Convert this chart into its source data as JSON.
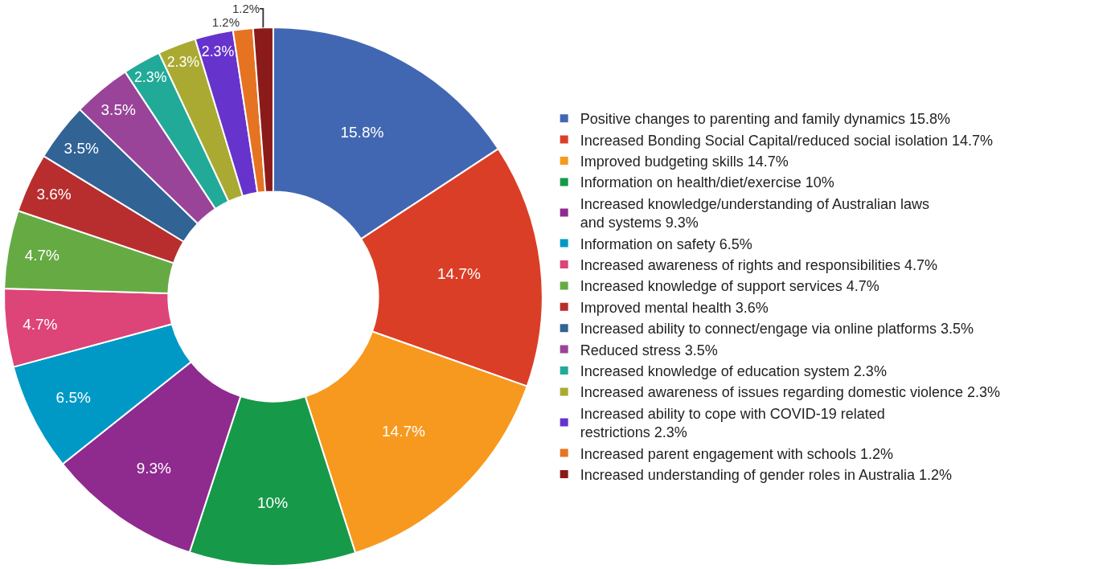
{
  "chart_data": {
    "type": "donut",
    "categories": [
      "Positive changes to parenting and family dynamics",
      "Increased Bonding Social Capital/reduced social isolation",
      "Improved budgeting skills",
      "Information on health/diet/exercise",
      "Increased knowledge/understanding of Australian laws and systems",
      "Information on safety",
      "Increased awareness of rights and responsibilities",
      "Increased knowledge of support services",
      "Improved mental health",
      "Increased ability to connect/engage via online platforms",
      "Reduced stress",
      "Increased knowledge of education system",
      "Increased awareness of issues regarding domestic violence",
      "Increased ability to cope with COVID-19 related restrictions",
      "Increased parent engagement with schools",
      "Increased understanding of gender roles in Australia"
    ],
    "values": [
      15.8,
      14.7,
      14.7,
      10,
      9.3,
      6.5,
      4.7,
      4.7,
      3.6,
      3.5,
      3.5,
      2.3,
      2.3,
      2.3,
      1.2,
      1.2
    ],
    "value_labels": [
      "15.8%",
      "14.7%",
      "14.7%",
      "10%",
      "9.3%",
      "6.5%",
      "4.7%",
      "4.7%",
      "3.6%",
      "3.5%",
      "3.5%",
      "2.3%",
      "2.3%",
      "2.3%",
      "1.2%",
      "1.2%"
    ],
    "colors": [
      "#4267b2",
      "#db3e26",
      "#f7991e",
      "#17994a",
      "#8f2a8f",
      "#0099c6",
      "#dd4477",
      "#66aa44",
      "#b82e2e",
      "#316395",
      "#994499",
      "#22aa99",
      "#aaaa33",
      "#6633cc",
      "#e67322",
      "#8b1a1a"
    ],
    "legend": "right"
  }
}
